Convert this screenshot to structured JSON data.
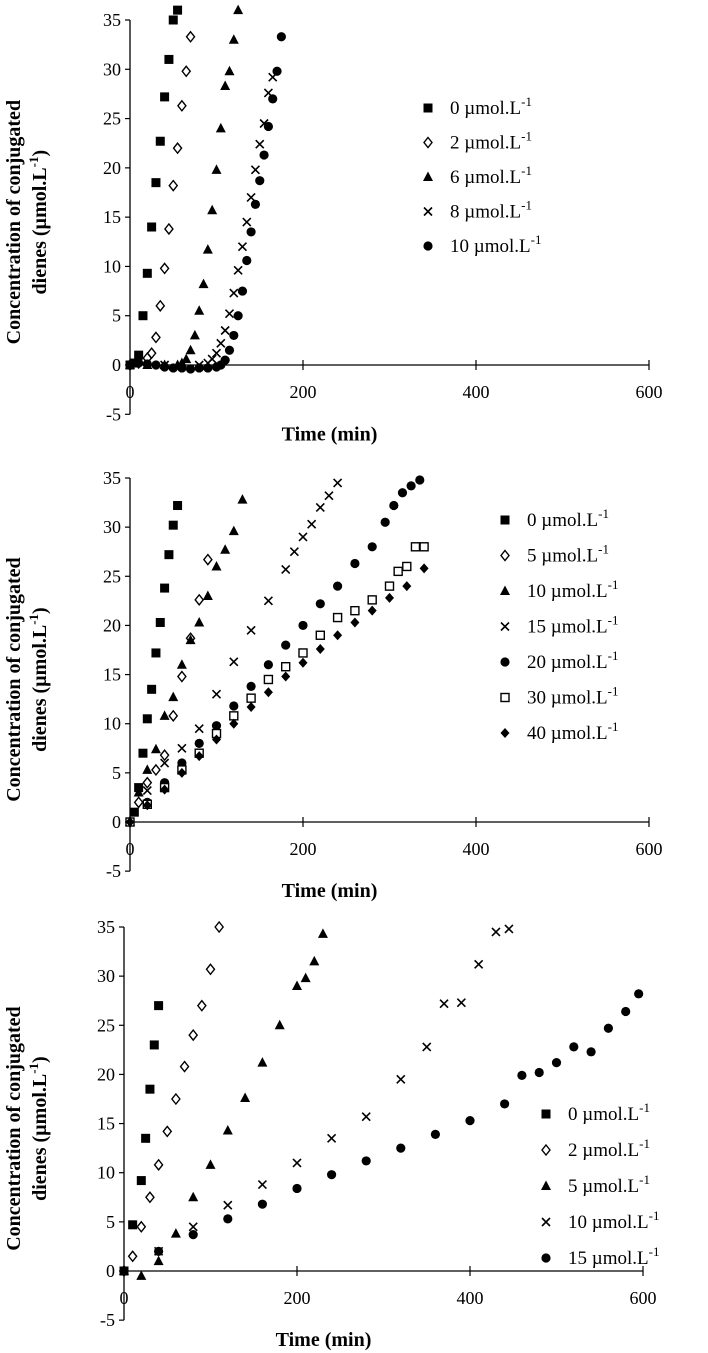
{
  "chart_data": [
    {
      "type": "scatter",
      "xlabel": "Time (min)",
      "ylabel": "Concentration of conjugated dienes (µmol.L-1)",
      "xlim": [
        0,
        600
      ],
      "ylim": [
        -5,
        35
      ],
      "xticks": [
        0,
        200,
        400,
        600
      ],
      "yticks": [
        -5,
        0,
        5,
        10,
        15,
        20,
        25,
        30,
        35
      ],
      "grid": false,
      "legend_position": "right",
      "series": [
        {
          "name": "0 µmol.L-1",
          "marker": "square",
          "x": [
            0,
            5,
            10,
            15,
            20,
            25,
            30,
            35,
            40,
            45,
            50,
            55
          ],
          "y": [
            0,
            0.2,
            1,
            5,
            9.3,
            14,
            18.5,
            22.7,
            27.2,
            31,
            35,
            36
          ]
        },
        {
          "name": "2 µmol.L-1",
          "marker": "diamond-open",
          "x": [
            0,
            10,
            20,
            25,
            30,
            35,
            40,
            45,
            50,
            55,
            60,
            65,
            70
          ],
          "y": [
            0,
            0.2,
            0.7,
            1.2,
            2.8,
            6,
            9.8,
            13.8,
            18.2,
            22,
            26.3,
            29.8,
            33.3
          ]
        },
        {
          "name": "6 µmol.L-1",
          "marker": "triangle",
          "x": [
            0,
            20,
            40,
            55,
            60,
            65,
            70,
            75,
            80,
            85,
            90,
            95,
            100,
            105,
            110,
            115,
            120,
            125
          ],
          "y": [
            0,
            0,
            0,
            0,
            0.2,
            0.6,
            1.5,
            3,
            5.5,
            8.2,
            11.7,
            15.7,
            19.8,
            24,
            28.3,
            29.8,
            33,
            36
          ]
        },
        {
          "name": "8 µmol.L-1",
          "marker": "x",
          "x": [
            0,
            40,
            80,
            90,
            95,
            100,
            105,
            110,
            115,
            120,
            125,
            130,
            135,
            140,
            145,
            150,
            155,
            160,
            165
          ],
          "y": [
            0,
            0,
            0,
            0.2,
            0.6,
            1.2,
            2.2,
            3.5,
            5.2,
            7.3,
            9.6,
            12,
            14.5,
            17,
            19.8,
            22.4,
            24.5,
            27.6,
            29.2
          ]
        },
        {
          "name": "10 µmol.L-1",
          "marker": "circle",
          "x": [
            0,
            10,
            20,
            30,
            40,
            50,
            60,
            70,
            80,
            90,
            100,
            105,
            110,
            115,
            120,
            125,
            130,
            135,
            140,
            145,
            150,
            155,
            160,
            165,
            170,
            175
          ],
          "y": [
            0,
            0.2,
            0.1,
            0,
            -0.2,
            -0.3,
            -0.3,
            -0.4,
            -0.3,
            -0.3,
            -0.2,
            0,
            0.5,
            1.5,
            3,
            5,
            7.5,
            10.6,
            13.5,
            16.3,
            18.7,
            21.3,
            24.2,
            27,
            29.8,
            33.3
          ]
        }
      ]
    },
    {
      "type": "scatter",
      "xlabel": "Time (min)",
      "ylabel": "Concentration of conjugated dienes (µmol.L-1)",
      "xlim": [
        0,
        600
      ],
      "ylim": [
        -5,
        35
      ],
      "xticks": [
        0,
        200,
        400,
        600
      ],
      "yticks": [
        -5,
        0,
        5,
        10,
        15,
        20,
        25,
        30,
        35
      ],
      "grid": false,
      "legend_position": "right",
      "series": [
        {
          "name": "0 µmol.L-1",
          "marker": "square",
          "x": [
            0,
            5,
            10,
            15,
            20,
            25,
            30,
            35,
            40,
            45,
            50,
            55
          ],
          "y": [
            0,
            1,
            3.5,
            7,
            10.5,
            13.5,
            17.2,
            20.3,
            23.8,
            27.2,
            30.2,
            32.2
          ]
        },
        {
          "name": "5 µmol.L-1",
          "marker": "diamond-open",
          "x": [
            0,
            10,
            20,
            30,
            40,
            50,
            60,
            70,
            80,
            90
          ],
          "y": [
            0,
            2,
            4,
            5.3,
            6.8,
            10.8,
            14.8,
            18.7,
            22.6,
            26.7
          ]
        },
        {
          "name": "10 µmol.L-1",
          "marker": "triangle",
          "x": [
            0,
            10,
            20,
            30,
            40,
            50,
            60,
            70,
            80,
            90,
            100,
            110,
            120,
            130
          ],
          "y": [
            0,
            3,
            5.3,
            7.4,
            10.8,
            12.7,
            16,
            18.5,
            20.3,
            23,
            26,
            27.7,
            29.6,
            32.8
          ]
        },
        {
          "name": "15 µmol.L-1",
          "marker": "x",
          "x": [
            0,
            20,
            40,
            60,
            80,
            100,
            120,
            140,
            160,
            180,
            190,
            200,
            210,
            220,
            230,
            240
          ],
          "y": [
            0,
            3.2,
            6,
            7.5,
            9.5,
            13,
            16.3,
            19.5,
            22.5,
            25.7,
            27.5,
            29,
            30.3,
            32,
            33.2,
            34.5
          ]
        },
        {
          "name": "20 µmol.L-1",
          "marker": "circle",
          "x": [
            0,
            20,
            40,
            60,
            80,
            100,
            120,
            140,
            160,
            180,
            200,
            220,
            240,
            260,
            280,
            295,
            305,
            315,
            325,
            335
          ],
          "y": [
            0,
            2,
            4,
            6,
            8,
            9.8,
            11.8,
            13.8,
            16,
            18,
            20,
            22.2,
            24,
            26.3,
            28,
            30.5,
            32.2,
            33.5,
            34.2,
            34.8
          ]
        },
        {
          "name": "30 µmol.L-1",
          "marker": "square-open",
          "x": [
            0,
            20,
            40,
            60,
            80,
            100,
            120,
            140,
            160,
            180,
            200,
            220,
            240,
            260,
            280,
            300,
            310,
            320,
            330,
            340
          ],
          "y": [
            0,
            1.8,
            3.5,
            5.3,
            7,
            9,
            10.8,
            12.6,
            14.5,
            15.8,
            17.2,
            19,
            20.8,
            21.5,
            22.6,
            24,
            25.5,
            26,
            28,
            28
          ]
        },
        {
          "name": "40 µmol.L-1",
          "marker": "diamond",
          "x": [
            0,
            20,
            40,
            60,
            80,
            100,
            120,
            140,
            160,
            180,
            200,
            220,
            240,
            260,
            280,
            300,
            320,
            340
          ],
          "y": [
            0,
            1.7,
            3.3,
            5,
            6.7,
            8.4,
            10,
            11.7,
            13.2,
            14.8,
            16.2,
            17.6,
            19,
            20.3,
            21.5,
            22.8,
            24,
            25.8
          ]
        }
      ]
    },
    {
      "type": "scatter",
      "xlabel": "Time (min)",
      "ylabel": "Concentration of conjugated dienes (µmol.L-1)",
      "xlim": [
        0,
        600
      ],
      "ylim": [
        -5,
        35
      ],
      "xticks": [
        0,
        200,
        400,
        600
      ],
      "yticks": [
        -5,
        0,
        5,
        10,
        15,
        20,
        25,
        30,
        35
      ],
      "grid": false,
      "legend_position": "right",
      "series": [
        {
          "name": "0 µmol.L-1",
          "marker": "square",
          "x": [
            0,
            10,
            20,
            25,
            30,
            35,
            40
          ],
          "y": [
            0,
            4.7,
            9.2,
            13.5,
            18.5,
            23,
            27
          ]
        },
        {
          "name": "2 µmol.L-1",
          "marker": "diamond-open",
          "x": [
            0,
            10,
            20,
            30,
            40,
            50,
            60,
            70,
            80,
            90,
            100,
            110
          ],
          "y": [
            0,
            1.5,
            4.5,
            7.5,
            10.8,
            14.2,
            17.5,
            20.8,
            24,
            27,
            30.7,
            35
          ]
        },
        {
          "name": "5 µmol.L-1",
          "marker": "triangle",
          "x": [
            0,
            20,
            40,
            60,
            80,
            100,
            120,
            140,
            160,
            180,
            200,
            210,
            220,
            230
          ],
          "y": [
            0,
            -0.5,
            1,
            3.8,
            7.5,
            10.8,
            14.3,
            17.6,
            21.2,
            25,
            29,
            29.8,
            31.5,
            34.3
          ]
        },
        {
          "name": "10 µmol.L-1",
          "marker": "x",
          "x": [
            0,
            40,
            80,
            120,
            160,
            200,
            240,
            280,
            320,
            350,
            370,
            390,
            410,
            430,
            445
          ],
          "y": [
            0,
            2,
            4.5,
            6.7,
            8.8,
            11,
            13.5,
            15.7,
            19.5,
            22.8,
            27.2,
            27.3,
            31.2,
            34.5,
            34.8
          ]
        },
        {
          "name": "15 µmol.L-1",
          "marker": "circle",
          "x": [
            0,
            40,
            80,
            120,
            160,
            200,
            240,
            280,
            320,
            360,
            400,
            440,
            460,
            480,
            500,
            520,
            540,
            560,
            580,
            595
          ],
          "y": [
            0,
            2,
            3.7,
            5.3,
            6.8,
            8.4,
            9.8,
            11.2,
            12.5,
            13.9,
            15.3,
            17,
            19.9,
            20.2,
            21.2,
            22.8,
            22.3,
            24.7,
            26.4,
            28.2
          ]
        }
      ]
    }
  ]
}
